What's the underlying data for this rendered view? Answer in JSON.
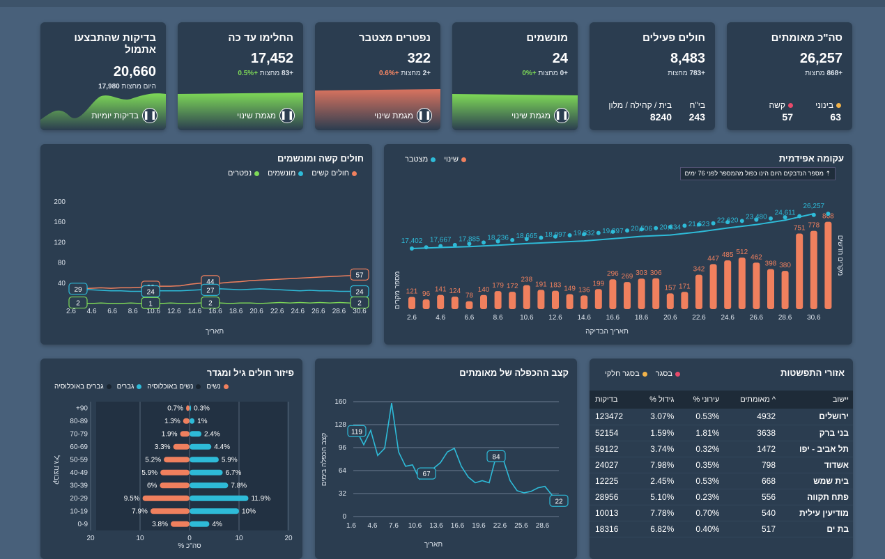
{
  "kpis": [
    {
      "title": "סה\"כ מאומתים",
      "value": "26,257",
      "diff": "+868",
      "diff_label": "מחצות"
    },
    {
      "title": "חולים פעילים",
      "value": "8,483",
      "diff": "+783",
      "diff_label": "מחצות"
    },
    {
      "title": "מונשמים",
      "value": "24",
      "diff": "+0",
      "diff_label": "מחצות",
      "pct": "+0%"
    },
    {
      "title": "נפטרים מצטבר",
      "value": "322",
      "diff": "+2",
      "diff_label": "מחצות",
      "pct": "+0.6%"
    },
    {
      "title": "החלימו עד כה",
      "value": "17,452",
      "diff": "+83",
      "diff_label": "מחצות",
      "pct": "+0.5%"
    },
    {
      "title": "בדיקות שהתבצעו אתמול",
      "value": "20,660",
      "today": "17,980",
      "today_label": "היום מחצות"
    }
  ],
  "kpi_extra": {
    "confirmed": {
      "mid_label": "בינוני",
      "mid_value": "63",
      "severe_label": "קשה",
      "severe_value": "57"
    },
    "active": {
      "hosp_label": "בי\"ח",
      "hosp_value": "243",
      "home_label": "בית / קהילה / מלון",
      "home_value": "8240"
    },
    "trend_label": "מגמת שינוי",
    "tests_label": "בדיקות יומיות"
  },
  "epi": {
    "title": "עקומה אפידמית",
    "legend_change": "שינוי",
    "legend_cum": "מצטבר",
    "note": "מספר הנדבקים היום הינו כפול מהמספר לפני 76 ימים",
    "xlabel": "תאריך הבדיקה",
    "ylabel_left": "מספר מקרים",
    "ylabel_right": "מקרים חדשים",
    "ticks": [
      "2.6",
      "4.6",
      "6.6",
      "8.6",
      "10.6",
      "12.6",
      "14.6",
      "16.6",
      "18.6",
      "20.6",
      "22.6",
      "24.6",
      "26.6",
      "28.6",
      "30.6"
    ]
  },
  "severe": {
    "title": "חולים קשה ומונשמים",
    "legend": [
      "חולים קשים",
      "מונשמים",
      "נפטרים"
    ],
    "xlabel": "תאריך",
    "yticks": [
      "200",
      "160",
      "120",
      "80",
      "40"
    ],
    "xticks": [
      "2.6",
      "4.6",
      "6.6",
      "8.6",
      "10.6",
      "12.6",
      "14.6",
      "16.6",
      "18.6",
      "20.6",
      "22.6",
      "24.6",
      "26.6",
      "28.6",
      "30.6"
    ]
  },
  "doubling": {
    "title": "קצב ההכפלה של מאומתים",
    "xlabel": "תאריך",
    "ylabel": "קצב הכפלה בימים",
    "yticks": [
      "160",
      "128",
      "96",
      "64",
      "32",
      "0"
    ],
    "xticks": [
      "1.6",
      "4.6",
      "7.6",
      "10.6",
      "13.6",
      "16.6",
      "19.6",
      "22.6",
      "25.6",
      "28.6"
    ]
  },
  "age": {
    "title": "פיזור חולים גיל ומגדר",
    "legend": [
      "נשים",
      "נשים באוכלוסיה",
      "גברים",
      "גברים באוכלוסיה"
    ],
    "xlabel": "% סה\"כ",
    "ylabel": "קבוצת גיל",
    "xticks": [
      "20",
      "10",
      "0",
      "10",
      "20"
    ]
  },
  "dist": {
    "title": "אזורי התפשטות",
    "legend_red": "בסגר",
    "legend_yellow": "בסגר חלקי",
    "headers": [
      "יישוב",
      "מאומתים ^",
      "% עירוני",
      "% גידול",
      "בדיקות"
    ],
    "rows": [
      [
        "ירושלים",
        "4932",
        "0.53%",
        "3.07%",
        "123472"
      ],
      [
        "בני ברק",
        "3638",
        "1.81%",
        "1.59%",
        "52154"
      ],
      [
        "תל אביב - יפו",
        "1472",
        "0.32%",
        "3.74%",
        "59122"
      ],
      [
        "אשדוד",
        "798",
        "0.35%",
        "7.98%",
        "24027"
      ],
      [
        "בית שמש",
        "668",
        "0.53%",
        "2.45%",
        "12225"
      ],
      [
        "פתח תקווה",
        "556",
        "0.23%",
        "5.10%",
        "28956"
      ],
      [
        "מודיעין עילית",
        "540",
        "0.70%",
        "7.78%",
        "10013"
      ],
      [
        "בת ים",
        "517",
        "0.40%",
        "6.82%",
        "18316"
      ]
    ]
  },
  "chart_data": [
    {
      "type": "bar",
      "title": "עקומה אפידמית",
      "series": [
        {
          "name": "שינוי",
          "values": [
            121,
            96,
            141,
            124,
            78,
            140,
            179,
            172,
            238,
            191,
            183,
            149,
            136,
            199,
            296,
            269,
            303,
            306,
            157,
            171,
            342,
            447,
            485,
            512,
            462,
            398,
            380,
            751,
            778,
            868
          ]
        },
        {
          "name": "מצטבר",
          "values": [
            17402,
            17667,
            17885,
            18236,
            18665,
            18997,
            19332,
            19897,
            20506,
            20834,
            21623,
            22620,
            23480,
            24611,
            26257
          ]
        }
      ]
    },
    {
      "type": "line",
      "title": "חולים קשה ומונשמים",
      "series": [
        {
          "name": "חולים קשים",
          "values": [
            29,
            29,
            30,
            31,
            30,
            31,
            31,
            32,
            33,
            34,
            34,
            35,
            38,
            40,
            44,
            40,
            42,
            43,
            45,
            46,
            47,
            48,
            49,
            50,
            51,
            52,
            53,
            54,
            55,
            57
          ]
        },
        {
          "name": "מונשמים",
          "values": [
            29,
            28,
            27,
            26,
            25,
            25,
            24,
            24,
            24,
            25,
            25,
            25,
            26,
            27,
            27,
            29,
            28,
            27,
            28,
            29,
            28,
            27,
            26,
            25,
            26,
            25,
            25,
            24,
            24,
            24
          ]
        },
        {
          "name": "נפטרים",
          "values": [
            2,
            1,
            0,
            1,
            0,
            0,
            1,
            0,
            1,
            0,
            1,
            0,
            0,
            1,
            2,
            1,
            0,
            1,
            1,
            0,
            1,
            2,
            1,
            2,
            1,
            2,
            1,
            2,
            1,
            2
          ]
        }
      ]
    },
    {
      "type": "line",
      "title": "קצב ההכפלה של מאומתים",
      "series": [
        {
          "name": "קצב",
          "values": [
            119,
            100,
            120,
            85,
            95,
            158,
            90,
            70,
            72,
            52,
            60,
            67,
            75,
            90,
            95,
            70,
            55,
            47,
            50,
            47,
            84,
            80,
            50,
            36,
            33,
            35,
            40,
            42,
            30,
            22
          ]
        }
      ]
    },
    {
      "type": "bar",
      "title": "פיזור חולים גיל ומגדר",
      "categories": [
        "+90",
        "80-89",
        "70-79",
        "60-69",
        "50-59",
        "40-49",
        "30-39",
        "20-29",
        "10-19",
        "0-9"
      ],
      "series": [
        {
          "name": "נשים",
          "values": [
            0.7,
            1.3,
            1.9,
            3.3,
            5.2,
            5.9,
            6,
            9.5,
            7.9,
            3.8
          ]
        },
        {
          "name": "גברים",
          "values": [
            0.3,
            1,
            2.4,
            4.4,
            5.9,
            6.7,
            7.8,
            11.9,
            10,
            4
          ]
        }
      ]
    }
  ]
}
